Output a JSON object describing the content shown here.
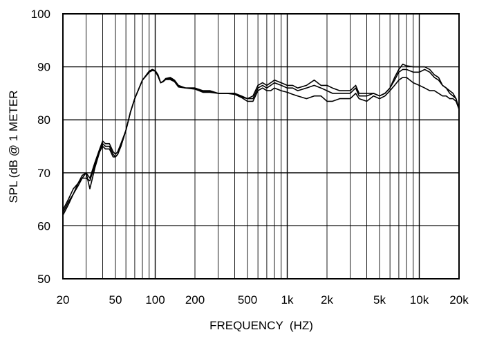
{
  "chart_data": {
    "type": "line",
    "title": "",
    "xlabel": "FREQUENCY  (HZ)",
    "ylabel": "SPL (dB @ 1 METER",
    "x_scale": "log",
    "xlim": [
      20,
      20000
    ],
    "ylim": [
      50,
      100
    ],
    "x_ticks": [
      {
        "value": 20,
        "label": "20"
      },
      {
        "value": 50,
        "label": "50"
      },
      {
        "value": 100,
        "label": "100"
      },
      {
        "value": 200,
        "label": "200"
      },
      {
        "value": 500,
        "label": "500"
      },
      {
        "value": 1000,
        "label": "1k"
      },
      {
        "value": 2000,
        "label": "2k"
      },
      {
        "value": 5000,
        "label": "5k"
      },
      {
        "value": 10000,
        "label": "10k"
      },
      {
        "value": 20000,
        "label": "20k"
      }
    ],
    "y_ticks": [
      {
        "value": 50,
        "label": "50"
      },
      {
        "value": 60,
        "label": "60"
      },
      {
        "value": 70,
        "label": "70"
      },
      {
        "value": 80,
        "label": "80"
      },
      {
        "value": 90,
        "label": "90"
      },
      {
        "value": 100,
        "label": "100"
      }
    ],
    "grid": true,
    "line_color": "#000000",
    "series": [
      {
        "x": [
          20,
          22,
          24,
          26,
          28,
          30,
          32,
          35,
          38,
          40,
          42,
          45,
          48,
          50,
          52,
          55,
          60,
          65,
          70,
          80,
          90,
          95,
          100,
          105,
          110,
          115,
          120,
          130,
          140,
          150,
          170,
          200,
          230,
          260,
          300,
          350,
          400,
          450,
          500,
          550,
          600,
          650,
          700,
          750,
          800,
          900,
          1000,
          1100,
          1200,
          1400,
          1600,
          1800,
          2000,
          2200,
          2500,
          2800,
          3000,
          3300,
          3500,
          4000,
          4500,
          5000,
          5500,
          6000,
          6500,
          7000,
          7500,
          8000,
          9000,
          10000,
          11000,
          12000,
          13000,
          14000,
          15000,
          16000,
          17000,
          18000,
          19000,
          20000
        ],
        "values": [
          63,
          65,
          67,
          68,
          69.5,
          70,
          69,
          72,
          74.5,
          76,
          75.5,
          75.5,
          74,
          73.5,
          74,
          75.5,
          78,
          81.5,
          84,
          87.5,
          89.2,
          89.5,
          89.3,
          88.5,
          87,
          87.3,
          87.8,
          88,
          87.5,
          86.5,
          86,
          86,
          85.5,
          85.5,
          85,
          85,
          85,
          84.5,
          84,
          84.5,
          86.5,
          87,
          86.5,
          87,
          87.5,
          87,
          86.5,
          86.5,
          86,
          86.5,
          87.5,
          86.5,
          86.5,
          86,
          85.5,
          85.5,
          85.5,
          86.5,
          85,
          85,
          85,
          84.5,
          85,
          86,
          88,
          89.5,
          90.5,
          90.2,
          90,
          90,
          90,
          89.5,
          88.5,
          88,
          86.5,
          86,
          85.5,
          85,
          84,
          82
        ]
      },
      {
        "x": [
          20,
          22,
          24,
          26,
          28,
          30,
          32,
          35,
          38,
          40,
          42,
          45,
          48,
          50,
          52,
          55,
          60,
          65,
          70,
          80,
          90,
          95,
          100,
          105,
          110,
          115,
          120,
          130,
          140,
          150,
          170,
          200,
          230,
          260,
          300,
          350,
          400,
          450,
          500,
          550,
          600,
          650,
          700,
          750,
          800,
          900,
          1000,
          1100,
          1200,
          1400,
          1600,
          1800,
          2000,
          2200,
          2500,
          2800,
          3000,
          3300,
          3500,
          4000,
          4500,
          5000,
          5500,
          6000,
          6500,
          7000,
          7500,
          8000,
          9000,
          10000,
          11000,
          12000,
          13000,
          14000,
          15000,
          16000,
          17000,
          18000,
          19000,
          20000
        ],
        "values": [
          62.5,
          64.5,
          66,
          67.5,
          69,
          69,
          68.5,
          71.5,
          74,
          75.5,
          75,
          75,
          73.5,
          73,
          73.5,
          75,
          78,
          81.5,
          84,
          87.5,
          89,
          89.5,
          89.2,
          88.3,
          87,
          87.2,
          87.7,
          87.8,
          87.3,
          86.3,
          86,
          86,
          85.3,
          85.3,
          85,
          85,
          85,
          84.3,
          84,
          84,
          86,
          86.5,
          86,
          86.5,
          87,
          86.5,
          86,
          86,
          85.5,
          86,
          86.5,
          86,
          85.5,
          85,
          85,
          85,
          85,
          86,
          84.5,
          84.5,
          85,
          84.5,
          85,
          86,
          87.5,
          89,
          89.5,
          89.5,
          89,
          89,
          89.5,
          89,
          88,
          87.5,
          86.5,
          86,
          85,
          84.5,
          84,
          82
        ]
      },
      {
        "x": [
          20,
          22,
          24,
          26,
          28,
          30,
          32,
          35,
          38,
          40,
          42,
          45,
          48,
          50,
          52,
          55,
          60,
          65,
          70,
          80,
          90,
          95,
          100,
          105,
          110,
          115,
          120,
          130,
          140,
          150,
          170,
          200,
          230,
          260,
          300,
          350,
          400,
          450,
          500,
          550,
          600,
          650,
          700,
          750,
          800,
          900,
          1000,
          1100,
          1200,
          1400,
          1600,
          1800,
          2000,
          2200,
          2500,
          2800,
          3000,
          3300,
          3500,
          4000,
          4500,
          5000,
          5500,
          6000,
          6500,
          7000,
          7500,
          8000,
          9000,
          10000,
          11000,
          12000,
          13000,
          14000,
          15000,
          16000,
          17000,
          18000,
          19000,
          20000
        ],
        "values": [
          62,
          64,
          66,
          68,
          69,
          70,
          67,
          71,
          74,
          75,
          74.5,
          74.5,
          73,
          73,
          73.5,
          75,
          78,
          81.5,
          84,
          87.5,
          89,
          89.3,
          89.2,
          88.2,
          87,
          87.2,
          87.6,
          87.6,
          87.2,
          86.2,
          86,
          85.8,
          85.2,
          85.2,
          85,
          85,
          84.8,
          84.2,
          83.5,
          83.5,
          85.5,
          86,
          85.5,
          85.5,
          86,
          85.5,
          85.2,
          84.8,
          84.5,
          84,
          84.5,
          84.5,
          83.5,
          83.5,
          84,
          84,
          84,
          85,
          84,
          83.5,
          84.5,
          84,
          84.5,
          85.5,
          86.5,
          87.5,
          88,
          88,
          87,
          86.5,
          86,
          85.5,
          85.5,
          85,
          84.5,
          84.5,
          84,
          84,
          83.5,
          82
        ]
      }
    ]
  }
}
